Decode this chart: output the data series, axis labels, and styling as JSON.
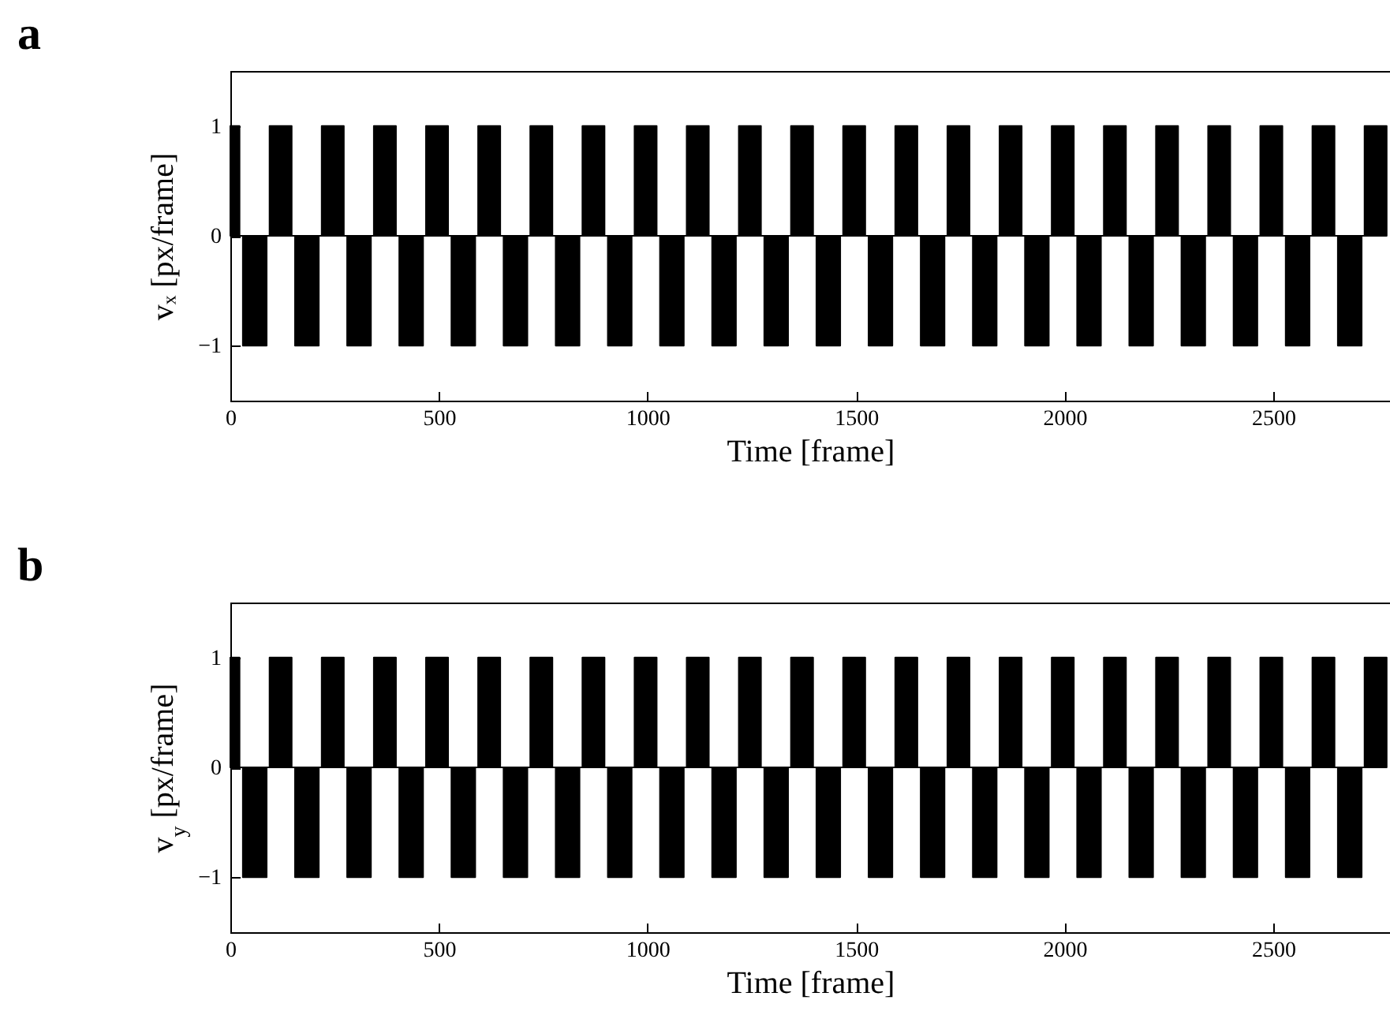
{
  "chart_data": [
    {
      "type": "area",
      "title": "a",
      "xlabel": "Time [frame]",
      "ylabel": "vₓ [px/frame]",
      "color": "#000000",
      "grid": false,
      "xlim": [
        0,
        2780
      ],
      "ylim": [
        -1.5,
        1.5
      ],
      "xticks": [
        0,
        500,
        1000,
        1500,
        2000,
        2500
      ],
      "yticks": [
        -1,
        0,
        1
      ],
      "x": [
        0,
        22,
        22,
        30,
        30,
        87,
        87,
        94,
        94,
        147,
        147,
        155,
        155,
        212,
        212,
        219,
        219,
        272,
        272,
        280,
        280,
        337,
        337,
        344,
        344,
        397,
        397,
        405,
        405,
        462,
        462,
        469,
        469,
        522,
        522,
        530,
        530,
        587,
        587,
        594,
        594,
        647,
        647,
        655,
        655,
        712,
        712,
        719,
        719,
        772,
        772,
        780,
        780,
        837,
        837,
        844,
        844,
        897,
        897,
        905,
        905,
        962,
        962,
        969,
        969,
        1022,
        1022,
        1030,
        1030,
        1087,
        1087,
        1094,
        1094,
        1147,
        1147,
        1155,
        1155,
        1212,
        1212,
        1219,
        1219,
        1272,
        1272,
        1280,
        1280,
        1337,
        1337,
        1344,
        1344,
        1397,
        1397,
        1405,
        1405,
        1462,
        1462,
        1469,
        1469,
        1522,
        1522,
        1530,
        1530,
        1587,
        1587,
        1594,
        1594,
        1647,
        1647,
        1655,
        1655,
        1712,
        1712,
        1719,
        1719,
        1772,
        1772,
        1780,
        1780,
        1837,
        1837,
        1844,
        1844,
        1897,
        1897,
        1905,
        1905,
        1962,
        1962,
        1969,
        1969,
        2022,
        2022,
        2030,
        2030,
        2087,
        2087,
        2094,
        2094,
        2147,
        2147,
        2155,
        2155,
        2212,
        2212,
        2219,
        2219,
        2272,
        2272,
        2280,
        2280,
        2337,
        2337,
        2344,
        2344,
        2397,
        2397,
        2405,
        2405,
        2462,
        2462,
        2469,
        2469,
        2522,
        2522,
        2530,
        2530,
        2587,
        2587,
        2594,
        2594,
        2647,
        2647,
        2655,
        2655,
        2712,
        2712,
        2719,
        2719,
        2772,
        2772
      ],
      "values": [
        1,
        1,
        0,
        0,
        -1,
        -1,
        0,
        0,
        1,
        1,
        0,
        0,
        -1,
        -1,
        0,
        0,
        1,
        1,
        0,
        0,
        -1,
        -1,
        0,
        0,
        1,
        1,
        0,
        0,
        -1,
        -1,
        0,
        0,
        1,
        1,
        0,
        0,
        -1,
        -1,
        0,
        0,
        1,
        1,
        0,
        0,
        -1,
        -1,
        0,
        0,
        1,
        1,
        0,
        0,
        -1,
        -1,
        0,
        0,
        1,
        1,
        0,
        0,
        -1,
        -1,
        0,
        0,
        1,
        1,
        0,
        0,
        -1,
        -1,
        0,
        0,
        1,
        1,
        0,
        0,
        -1,
        -1,
        0,
        0,
        1,
        1,
        0,
        0,
        -1,
        -1,
        0,
        0,
        1,
        1,
        0,
        0,
        -1,
        -1,
        0,
        0,
        1,
        1,
        0,
        0,
        -1,
        -1,
        0,
        0,
        1,
        1,
        0,
        0,
        -1,
        -1,
        0,
        0,
        1,
        1,
        0,
        0,
        -1,
        -1,
        0,
        0,
        1,
        1,
        0,
        0,
        -1,
        -1,
        0,
        0,
        1,
        1,
        0,
        0,
        -1,
        -1,
        0,
        0,
        1,
        1,
        0,
        0,
        -1,
        -1,
        0,
        0,
        1,
        1,
        0,
        0,
        -1,
        -1,
        0,
        0,
        1,
        1,
        0,
        0,
        -1,
        -1,
        0,
        0,
        1,
        1,
        0,
        0,
        -1,
        -1,
        0,
        0,
        1,
        1,
        0,
        0,
        -1,
        -1,
        0,
        0,
        1,
        1,
        0
      ]
    },
    {
      "type": "area",
      "title": "b",
      "xlabel": "Time [frame]",
      "ylabel": "v$_{y}$ [px/frame]",
      "color": "#000000",
      "grid": false,
      "xlim": [
        0,
        2780
      ],
      "ylim": [
        -1.5,
        1.5
      ],
      "xticks": [
        0,
        500,
        1000,
        1500,
        2000,
        2500
      ],
      "yticks": [
        -1,
        0,
        1
      ],
      "x": [
        0,
        22,
        22,
        30,
        30,
        87,
        87,
        94,
        94,
        147,
        147,
        155,
        155,
        212,
        212,
        219,
        219,
        272,
        272,
        280,
        280,
        337,
        337,
        344,
        344,
        397,
        397,
        405,
        405,
        462,
        462,
        469,
        469,
        522,
        522,
        530,
        530,
        587,
        587,
        594,
        594,
        647,
        647,
        655,
        655,
        712,
        712,
        719,
        719,
        772,
        772,
        780,
        780,
        837,
        837,
        844,
        844,
        897,
        897,
        905,
        905,
        962,
        962,
        969,
        969,
        1022,
        1022,
        1030,
        1030,
        1087,
        1087,
        1094,
        1094,
        1147,
        1147,
        1155,
        1155,
        1212,
        1212,
        1219,
        1219,
        1272,
        1272,
        1280,
        1280,
        1337,
        1337,
        1344,
        1344,
        1397,
        1397,
        1405,
        1405,
        1462,
        1462,
        1469,
        1469,
        1522,
        1522,
        1530,
        1530,
        1587,
        1587,
        1594,
        1594,
        1647,
        1647,
        1655,
        1655,
        1712,
        1712,
        1719,
        1719,
        1772,
        1772,
        1780,
        1780,
        1837,
        1837,
        1844,
        1844,
        1897,
        1897,
        1905,
        1905,
        1962,
        1962,
        1969,
        1969,
        2022,
        2022,
        2030,
        2030,
        2087,
        2087,
        2094,
        2094,
        2147,
        2147,
        2155,
        2155,
        2212,
        2212,
        2219,
        2219,
        2272,
        2272,
        2280,
        2280,
        2337,
        2337,
        2344,
        2344,
        2397,
        2397,
        2405,
        2405,
        2462,
        2462,
        2469,
        2469,
        2522,
        2522,
        2530,
        2530,
        2587,
        2587,
        2594,
        2594,
        2647,
        2647,
        2655,
        2655,
        2712,
        2712,
        2719,
        2719,
        2772,
        2772
      ],
      "values": [
        1,
        1,
        0,
        0,
        -1,
        -1,
        0,
        0,
        1,
        1,
        0,
        0,
        -1,
        -1,
        0,
        0,
        1,
        1,
        0,
        0,
        -1,
        -1,
        0,
        0,
        1,
        1,
        0,
        0,
        -1,
        -1,
        0,
        0,
        1,
        1,
        0,
        0,
        -1,
        -1,
        0,
        0,
        1,
        1,
        0,
        0,
        -1,
        -1,
        0,
        0,
        1,
        1,
        0,
        0,
        -1,
        -1,
        0,
        0,
        1,
        1,
        0,
        0,
        -1,
        -1,
        0,
        0,
        1,
        1,
        0,
        0,
        -1,
        -1,
        0,
        0,
        1,
        1,
        0,
        0,
        -1,
        -1,
        0,
        0,
        1,
        1,
        0,
        0,
        -1,
        -1,
        0,
        0,
        1,
        1,
        0,
        0,
        -1,
        -1,
        0,
        0,
        1,
        1,
        0,
        0,
        -1,
        -1,
        0,
        0,
        1,
        1,
        0,
        0,
        -1,
        -1,
        0,
        0,
        1,
        1,
        0,
        0,
        -1,
        -1,
        0,
        0,
        1,
        1,
        0,
        0,
        -1,
        -1,
        0,
        0,
        1,
        1,
        0,
        0,
        -1,
        -1,
        0,
        0,
        1,
        1,
        0,
        0,
        -1,
        -1,
        0,
        0,
        1,
        1,
        0,
        0,
        -1,
        -1,
        0,
        0,
        1,
        1,
        0,
        0,
        -1,
        -1,
        0,
        0,
        1,
        1,
        0,
        0,
        -1,
        -1,
        0,
        0,
        1,
        1,
        0,
        0,
        -1,
        -1,
        0,
        0,
        1,
        1,
        0
      ]
    }
  ]
}
